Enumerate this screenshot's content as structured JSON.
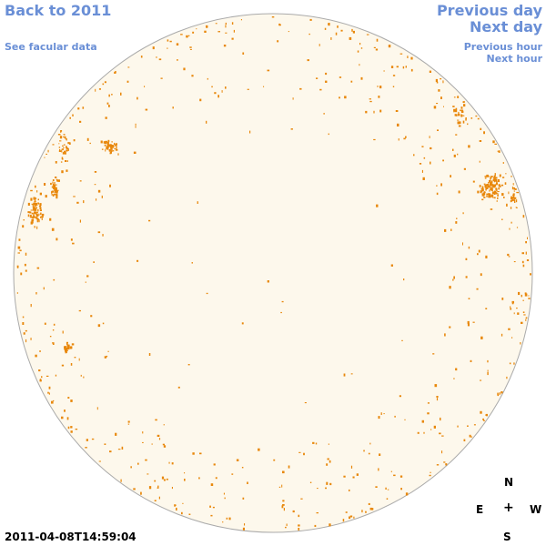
{
  "nav": {
    "back_label": "Back to 2011",
    "facular_label": "See facular data",
    "prev_day_label": "Previous day",
    "next_day_label": "Next day",
    "prev_hour_label": "Previous hour",
    "next_hour_label": "Next hour"
  },
  "compass": {
    "north": "N",
    "south": "S",
    "east": "E",
    "west": "W",
    "center": "+"
  },
  "timestamp": "2011-04-08T14:59:04",
  "colors": {
    "disk_fill": "#fdf8ec",
    "disk_stroke": "#aaaaaa",
    "feature": "#e8870a",
    "link": "#6a8fd6"
  }
}
